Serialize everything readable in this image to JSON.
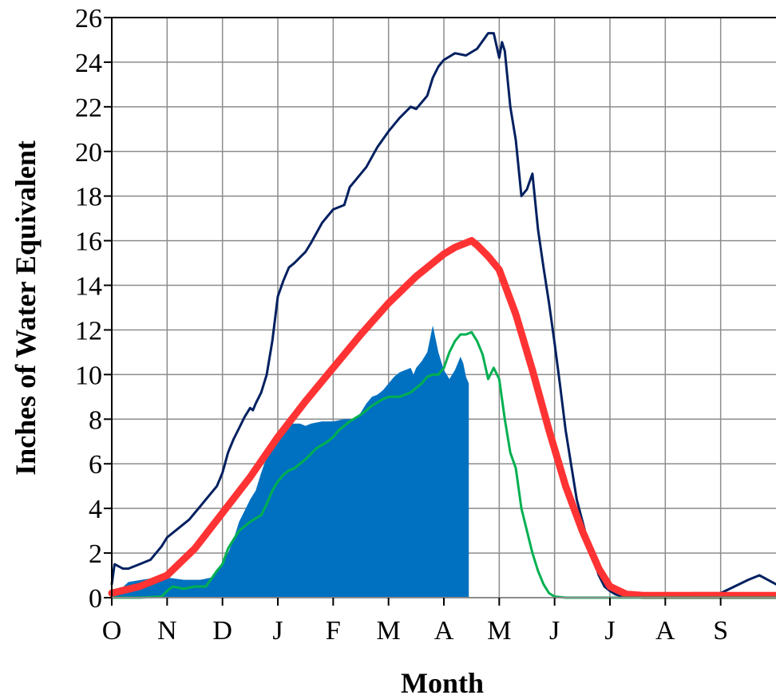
{
  "chart_data": {
    "type": "area",
    "xlabel": "Month",
    "ylabel": "Inches of Water Equivalent",
    "title": "",
    "ylim": [
      0,
      26
    ],
    "yticks": [
      0,
      2,
      4,
      6,
      8,
      10,
      12,
      14,
      16,
      18,
      20,
      22,
      24,
      26
    ],
    "month_labels": [
      "O",
      "N",
      "D",
      "J",
      "F",
      "M",
      "A",
      "M",
      "J",
      "J",
      "A",
      "S"
    ],
    "grid": true,
    "legend": "none",
    "series": [
      {
        "color": "#0070c0",
        "style": "filled area",
        "x": [
          0,
          0.3,
          0.8,
          1.0,
          1.3,
          1.6,
          1.8,
          2.0,
          2.1,
          2.2,
          2.3,
          2.4,
          2.5,
          2.6,
          2.7,
          2.8,
          2.9,
          3.0,
          3.1,
          3.2,
          3.3,
          3.4,
          3.5,
          3.6,
          3.8,
          4.0,
          4.2,
          4.4,
          4.5,
          4.6,
          4.7,
          4.8,
          4.9,
          5.0,
          5.1,
          5.2,
          5.3,
          5.4,
          5.45,
          5.5,
          5.6,
          5.7,
          5.8,
          5.9,
          5.95,
          6.0,
          6.05,
          6.1,
          6.2,
          6.3,
          6.35,
          6.4,
          6.45
        ],
        "y": [
          0,
          0.7,
          0.9,
          0.9,
          0.8,
          0.8,
          0.9,
          1.6,
          2.0,
          2.6,
          3.4,
          3.9,
          4.4,
          4.8,
          5.6,
          6.3,
          6.9,
          7.3,
          7.6,
          7.8,
          7.8,
          7.8,
          7.7,
          7.8,
          7.9,
          7.9,
          8.0,
          8.0,
          8.3,
          8.7,
          9.0,
          9.1,
          9.3,
          9.6,
          9.9,
          10.1,
          10.2,
          10.3,
          10.0,
          10.3,
          10.6,
          11.0,
          12.2,
          11.0,
          10.6,
          10.2,
          10.0,
          9.8,
          10.2,
          10.8,
          10.5,
          9.9,
          9.6
        ]
      },
      {
        "color": "#002060",
        "style": "line",
        "x": [
          0,
          0.05,
          0.2,
          0.3,
          0.5,
          0.7,
          0.8,
          0.9,
          1.0,
          1.2,
          1.4,
          1.6,
          1.8,
          1.9,
          2.0,
          2.1,
          2.2,
          2.3,
          2.4,
          2.5,
          2.55,
          2.6,
          2.7,
          2.8,
          2.9,
          3.0,
          3.1,
          3.2,
          3.3,
          3.5,
          3.6,
          3.8,
          4.0,
          4.2,
          4.3,
          4.4,
          4.6,
          4.8,
          5.0,
          5.2,
          5.4,
          5.5,
          5.7,
          5.8,
          5.9,
          6.0,
          6.2,
          6.4,
          6.6,
          6.8,
          6.9,
          7.0,
          7.05,
          7.1,
          7.2,
          7.3,
          7.4,
          7.5,
          7.6,
          7.7,
          7.8,
          7.9,
          8.0,
          8.1,
          8.2,
          8.4,
          8.6,
          8.8,
          8.9,
          9.0,
          9.1,
          9.2,
          9.3,
          9.4,
          9.5,
          9.6,
          9.8,
          10.0,
          10.5,
          11.0,
          11.5,
          11.7,
          11.85,
          12.0
        ],
        "y": [
          0.6,
          1.5,
          1.3,
          1.3,
          1.5,
          1.7,
          2.0,
          2.3,
          2.7,
          3.1,
          3.5,
          4.1,
          4.7,
          5.0,
          5.6,
          6.5,
          7.1,
          7.6,
          8.1,
          8.5,
          8.4,
          8.7,
          9.2,
          10.0,
          11.5,
          13.5,
          14.2,
          14.8,
          15.0,
          15.5,
          15.9,
          16.8,
          17.4,
          17.6,
          18.4,
          18.7,
          19.3,
          20.2,
          20.9,
          21.5,
          22.0,
          21.9,
          22.5,
          23.3,
          23.8,
          24.1,
          24.4,
          24.3,
          24.6,
          25.3,
          25.3,
          24.2,
          24.9,
          24.5,
          22.0,
          20.5,
          18.0,
          18.3,
          19.0,
          16.5,
          14.8,
          13.2,
          11.4,
          9.5,
          7.5,
          4.4,
          2.5,
          1.0,
          0.5,
          0.3,
          0.15,
          0.08,
          0.05,
          0.05,
          0.05,
          0.05,
          0.1,
          0.1,
          0.2,
          0.2,
          0.8,
          1.0,
          0.8,
          0.6
        ]
      },
      {
        "color": "#ff3333",
        "style": "line",
        "x": [
          0,
          0.5,
          1.0,
          1.5,
          2.0,
          2.5,
          3.0,
          3.5,
          4.0,
          4.5,
          5.0,
          5.5,
          6.0,
          6.2,
          6.4,
          6.5,
          6.6,
          6.8,
          7.0,
          7.3,
          7.6,
          7.9,
          8.2,
          8.5,
          8.8,
          9.0,
          9.3,
          9.6,
          10.0,
          11.0,
          12.0
        ],
        "y": [
          0.2,
          0.5,
          1.0,
          2.2,
          3.8,
          5.4,
          7.2,
          8.8,
          10.3,
          11.8,
          13.2,
          14.4,
          15.4,
          15.7,
          15.9,
          16.0,
          15.8,
          15.3,
          14.7,
          12.7,
          10.2,
          7.5,
          5.0,
          3.0,
          1.3,
          0.5,
          0.15,
          0.1,
          0.1,
          0.1,
          0.1
        ]
      },
      {
        "color": "#00b050",
        "style": "line",
        "x": [
          0,
          0.5,
          0.9,
          1.0,
          1.1,
          1.3,
          1.5,
          1.7,
          1.9,
          2.0,
          2.1,
          2.2,
          2.3,
          2.4,
          2.5,
          2.7,
          2.8,
          2.9,
          3.0,
          3.1,
          3.2,
          3.3,
          3.5,
          3.7,
          3.9,
          4.0,
          4.1,
          4.2,
          4.3,
          4.5,
          4.7,
          4.9,
          5.0,
          5.2,
          5.4,
          5.5,
          5.6,
          5.7,
          5.8,
          5.9,
          6.0,
          6.1,
          6.2,
          6.3,
          6.4,
          6.5,
          6.6,
          6.7,
          6.8,
          6.9,
          7.0,
          7.1,
          7.2,
          7.3,
          7.4,
          7.5,
          7.6,
          7.7,
          7.8,
          7.9,
          8.0,
          8.2,
          9.0,
          10.0,
          11.0,
          12.0
        ],
        "y": [
          0,
          0,
          0.05,
          0.3,
          0.5,
          0.4,
          0.5,
          0.5,
          1.2,
          1.5,
          2.2,
          2.6,
          3.0,
          3.2,
          3.4,
          3.7,
          4.2,
          4.8,
          5.2,
          5.5,
          5.7,
          5.8,
          6.2,
          6.7,
          7.0,
          7.2,
          7.5,
          7.7,
          7.9,
          8.2,
          8.6,
          8.9,
          9.0,
          9.0,
          9.2,
          9.4,
          9.6,
          9.9,
          10.0,
          10.0,
          10.3,
          11.0,
          11.5,
          11.8,
          11.8,
          11.9,
          11.5,
          10.9,
          9.8,
          10.3,
          9.8,
          8.0,
          6.5,
          5.8,
          4.0,
          3.0,
          2.0,
          1.2,
          0.6,
          0.2,
          0.05,
          0,
          0,
          0,
          0,
          0
        ]
      }
    ]
  }
}
